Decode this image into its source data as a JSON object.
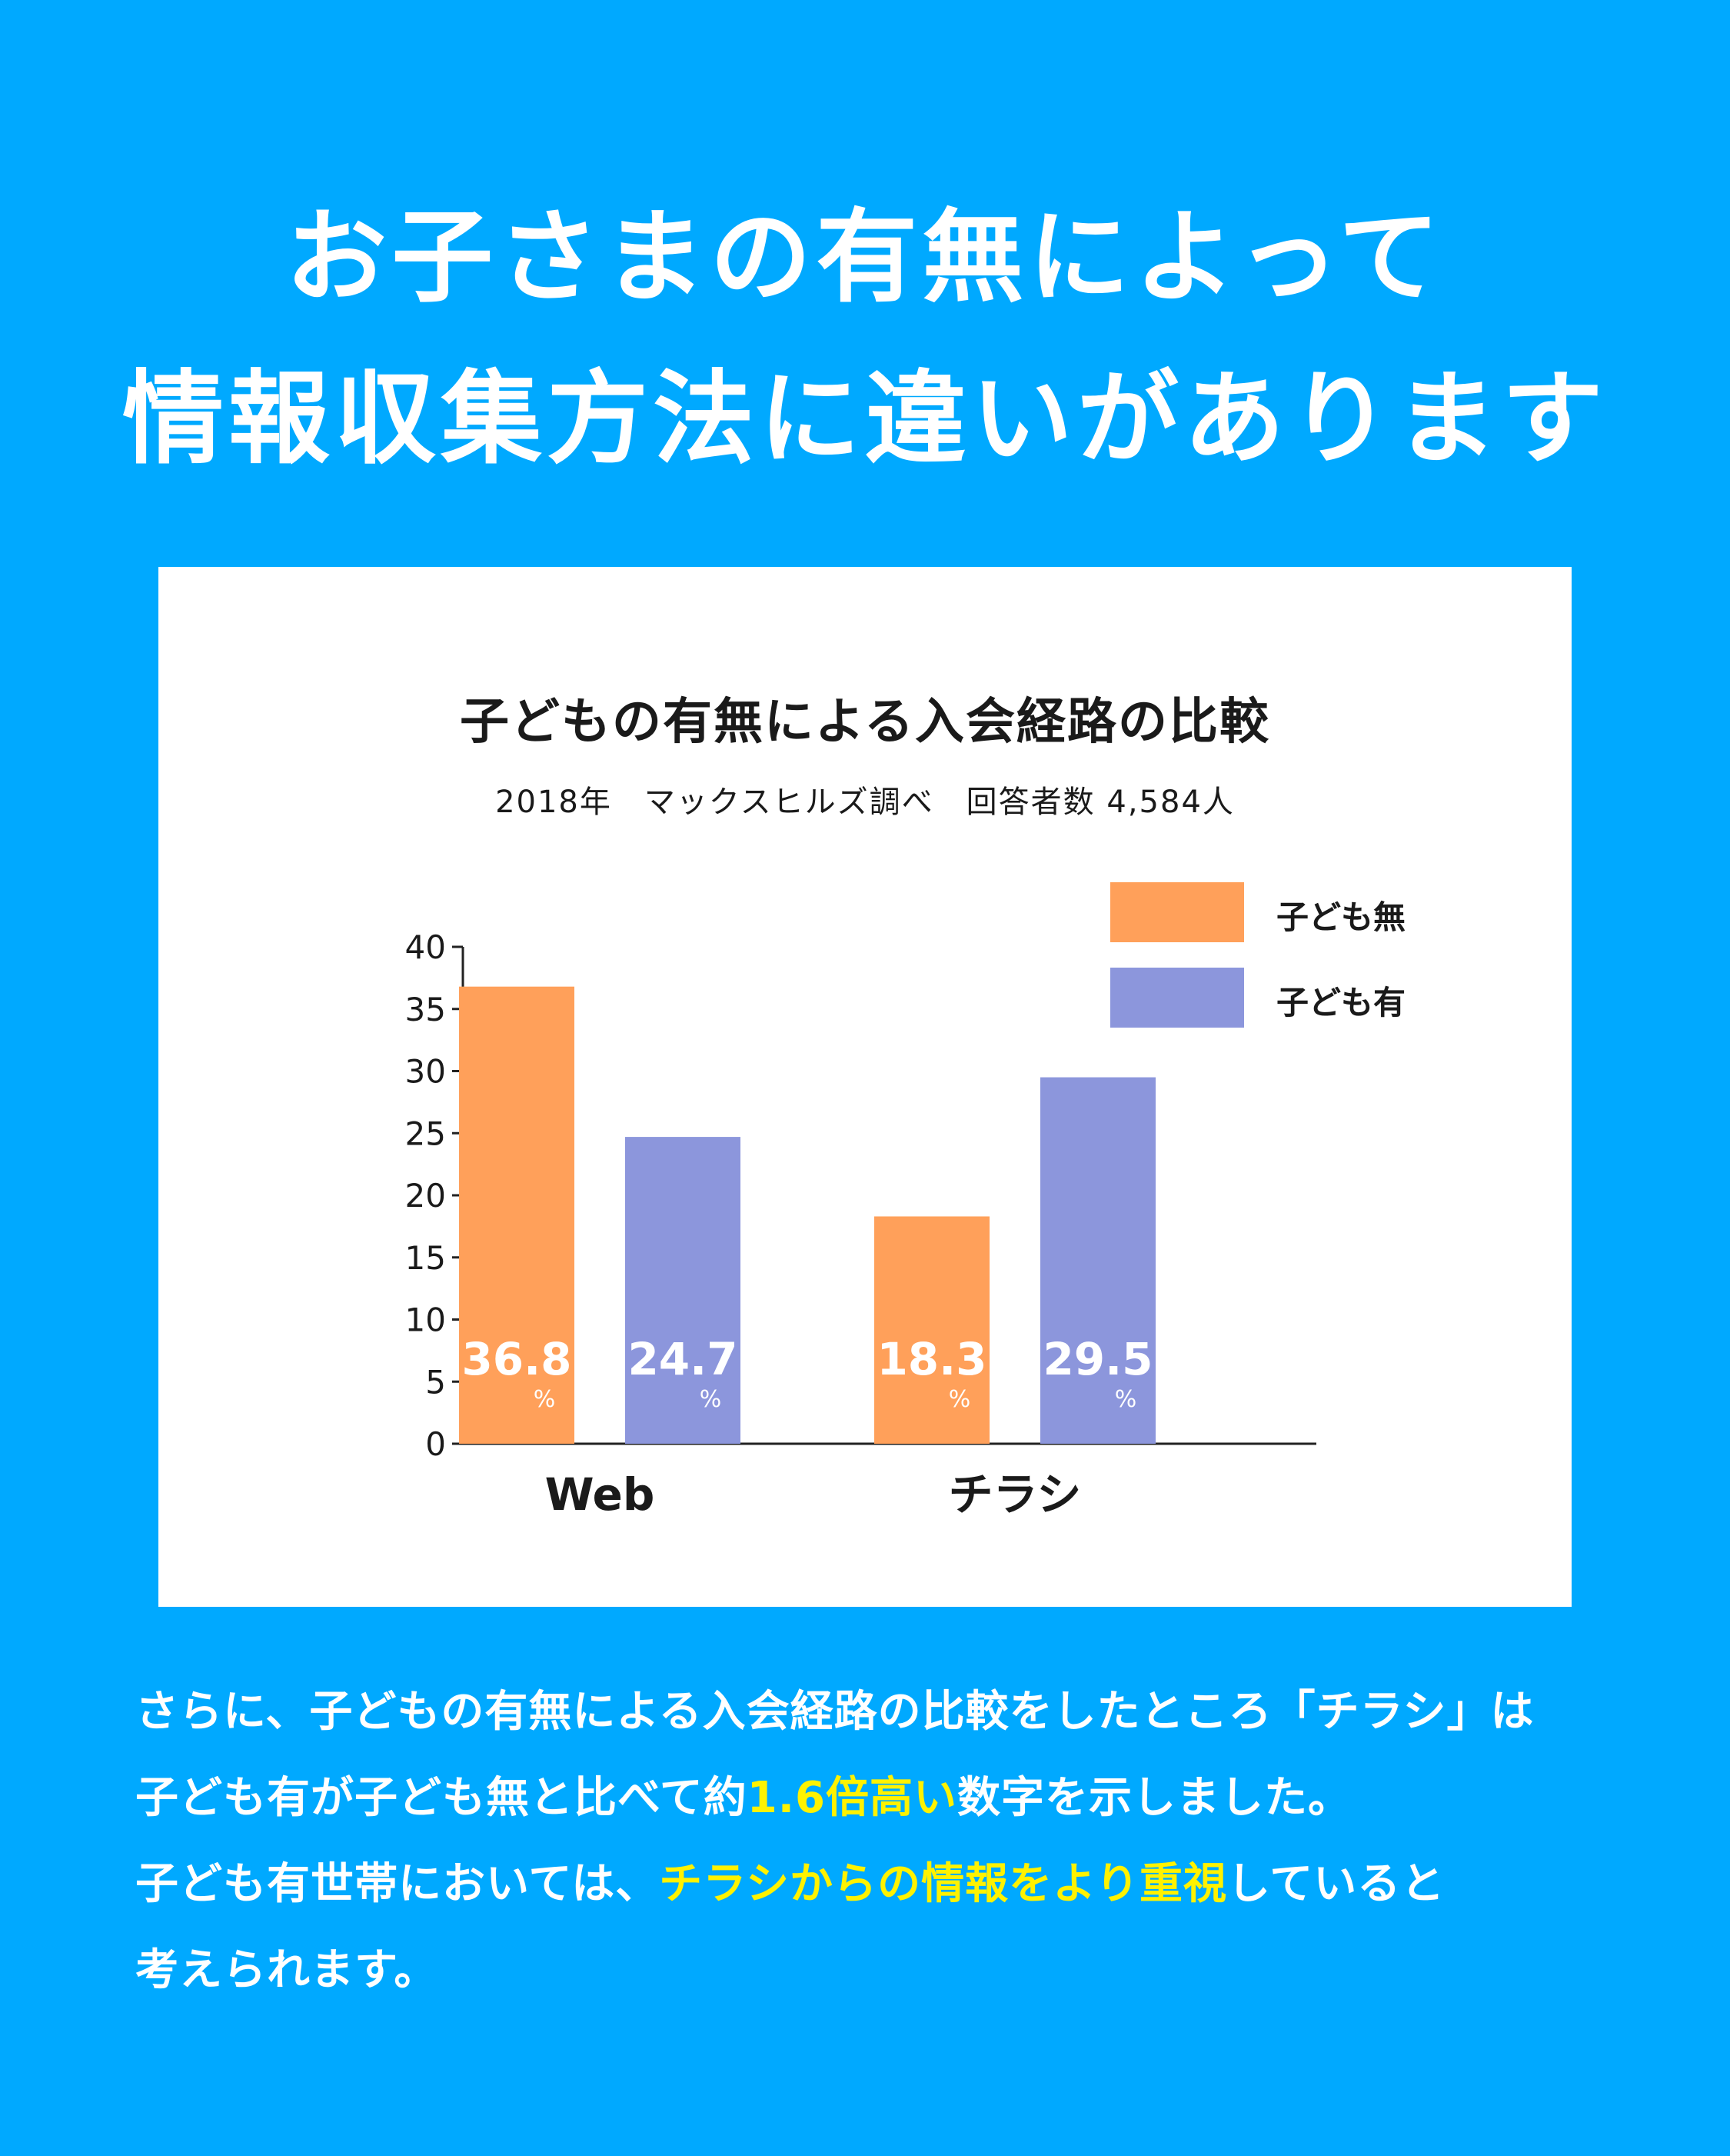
{
  "headline": {
    "line1": "お子さまの有無によって",
    "line2": "情報収集方法に違いがあります"
  },
  "colors": {
    "background": "#00a9ff",
    "no_children": "#ffa05a",
    "with_children": "#8c96dc",
    "highlight": "#fff200"
  },
  "chart_data": {
    "type": "bar",
    "title": "子どもの有無による入会経路の比較",
    "subtitle": "2018年　マックスヒルズ調べ　回答者数 4,584人",
    "categories": [
      "Web",
      "チラシ"
    ],
    "series": [
      {
        "name": "子ども無",
        "values": [
          36.8,
          18.3
        ],
        "labels": [
          "36.8",
          "18.3"
        ],
        "color": "#ffa05a"
      },
      {
        "name": "子ども有",
        "values": [
          24.7,
          29.5
        ],
        "labels": [
          "24.7",
          "29.5"
        ],
        "color": "#8c96dc"
      }
    ],
    "value_unit": "%",
    "yticks": [
      "0",
      "5",
      "10",
      "15",
      "20",
      "25",
      "30",
      "35",
      "40"
    ],
    "ylim": [
      0,
      40
    ],
    "grid": false,
    "legend": "top-right"
  },
  "body": {
    "line1": "さらに、子どもの有無による入会経路の比較をしたところ「チラシ」は",
    "line2_a": "子ども有が子ども無と比べて約",
    "line2_hl": "1.6倍高い",
    "line2_b": "数字を示しました。",
    "line3_a": "子ども有世帯においては、",
    "line3_hl": "チラシからの情報をより重視",
    "line3_b": "していると",
    "line4": "考えられます。"
  }
}
